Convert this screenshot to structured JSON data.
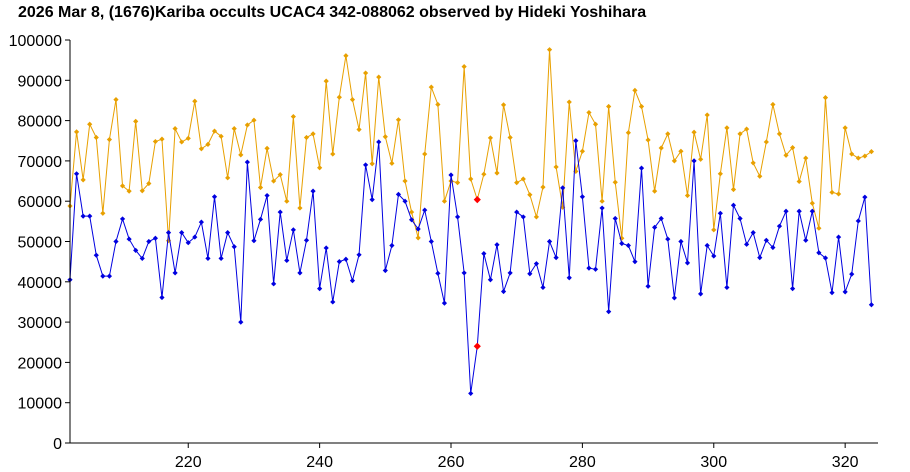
{
  "chart_data": {
    "type": "line",
    "title": "2026 Mar 8, (1676)Kariba occults UCAC4 342-088062 observed by Hideki Yoshihara",
    "xlabel": "",
    "ylabel": "",
    "xlim": [
      202,
      325
    ],
    "ylim": [
      0,
      100000
    ],
    "x_ticks": [
      220,
      240,
      260,
      280,
      300,
      320
    ],
    "y_ticks": [
      0,
      10000,
      20000,
      30000,
      40000,
      50000,
      60000,
      70000,
      80000,
      90000,
      100000
    ],
    "grid": false,
    "legend": "none",
    "colors": {
      "series_1": "#0000e0",
      "series_2": "#e8a000",
      "highlight": "#ff0000"
    },
    "highlight_x": [
      264
    ],
    "series": [
      {
        "values": [
          [
            202,
            40500
          ],
          [
            203,
            66800
          ],
          [
            204,
            56300
          ],
          [
            205,
            56300
          ],
          [
            206,
            46600
          ],
          [
            207,
            41400
          ],
          [
            208,
            41400
          ],
          [
            209,
            50000
          ],
          [
            210,
            55600
          ],
          [
            211,
            50600
          ],
          [
            212,
            47800
          ],
          [
            213,
            45800
          ],
          [
            214,
            50000
          ],
          [
            215,
            50800
          ],
          [
            216,
            36100
          ],
          [
            217,
            52200
          ],
          [
            218,
            42200
          ],
          [
            219,
            52200
          ],
          [
            220,
            49700
          ],
          [
            221,
            51100
          ],
          [
            222,
            54800
          ],
          [
            223,
            45800
          ],
          [
            224,
            61100
          ],
          [
            225,
            45800
          ],
          [
            226,
            52200
          ],
          [
            227,
            48700
          ],
          [
            228,
            30000
          ],
          [
            229,
            69700
          ],
          [
            230,
            50200
          ],
          [
            231,
            55500
          ],
          [
            232,
            61400
          ],
          [
            233,
            39500
          ],
          [
            234,
            57300
          ],
          [
            235,
            45300
          ],
          [
            236,
            52900
          ],
          [
            237,
            42200
          ],
          [
            238,
            50300
          ],
          [
            239,
            62500
          ],
          [
            240,
            38300
          ],
          [
            241,
            48400
          ],
          [
            242,
            35000
          ],
          [
            243,
            45000
          ],
          [
            244,
            45600
          ],
          [
            245,
            40300
          ],
          [
            246,
            46700
          ],
          [
            247,
            69000
          ],
          [
            248,
            60400
          ],
          [
            249,
            74700
          ],
          [
            250,
            42800
          ],
          [
            251,
            49000
          ],
          [
            252,
            61700
          ],
          [
            253,
            60000
          ],
          [
            254,
            55400
          ],
          [
            255,
            53100
          ],
          [
            256,
            57800
          ],
          [
            257,
            50000
          ],
          [
            258,
            42100
          ],
          [
            259,
            34700
          ],
          [
            260,
            66500
          ],
          [
            261,
            56100
          ],
          [
            262,
            42200
          ],
          [
            263,
            12300
          ],
          [
            264,
            24000
          ],
          [
            265,
            47000
          ],
          [
            266,
            40500
          ],
          [
            267,
            49200
          ],
          [
            268,
            37600
          ],
          [
            269,
            42200
          ],
          [
            270,
            57300
          ],
          [
            271,
            56100
          ],
          [
            272,
            42000
          ],
          [
            273,
            44500
          ],
          [
            274,
            38600
          ],
          [
            275,
            50000
          ],
          [
            276,
            46000
          ],
          [
            277,
            63300
          ],
          [
            278,
            41000
          ],
          [
            279,
            75000
          ],
          [
            280,
            61100
          ],
          [
            281,
            43400
          ],
          [
            282,
            43100
          ],
          [
            283,
            58300
          ],
          [
            284,
            32600
          ],
          [
            285,
            55700
          ],
          [
            286,
            49500
          ],
          [
            287,
            49000
          ],
          [
            288,
            45000
          ],
          [
            289,
            68200
          ],
          [
            290,
            38900
          ],
          [
            291,
            53500
          ],
          [
            292,
            55700
          ],
          [
            293,
            50600
          ],
          [
            294,
            36000
          ],
          [
            295,
            50000
          ],
          [
            296,
            44700
          ],
          [
            297,
            70000
          ],
          [
            298,
            37000
          ],
          [
            299,
            49000
          ],
          [
            300,
            46400
          ],
          [
            301,
            57000
          ],
          [
            302,
            38600
          ],
          [
            303,
            59000
          ],
          [
            304,
            55700
          ],
          [
            305,
            49300
          ],
          [
            306,
            52200
          ],
          [
            307,
            46000
          ],
          [
            308,
            50300
          ],
          [
            309,
            48500
          ],
          [
            310,
            53800
          ],
          [
            311,
            57500
          ],
          [
            312,
            38300
          ],
          [
            313,
            57500
          ],
          [
            314,
            50300
          ],
          [
            315,
            57500
          ],
          [
            316,
            47200
          ],
          [
            317,
            45900
          ],
          [
            318,
            37300
          ],
          [
            319,
            51100
          ],
          [
            320,
            37500
          ],
          [
            321,
            41900
          ],
          [
            322,
            55100
          ],
          [
            323,
            61000
          ],
          [
            324,
            34300
          ]
        ]
      },
      {
        "values": [
          [
            202,
            58800
          ],
          [
            203,
            77200
          ],
          [
            204,
            65300
          ],
          [
            205,
            79100
          ],
          [
            206,
            75800
          ],
          [
            207,
            57000
          ],
          [
            208,
            75300
          ],
          [
            209,
            85200
          ],
          [
            210,
            63800
          ],
          [
            211,
            62500
          ],
          [
            212,
            79800
          ],
          [
            213,
            62600
          ],
          [
            214,
            64400
          ],
          [
            215,
            74800
          ],
          [
            216,
            75400
          ],
          [
            217,
            50200
          ],
          [
            218,
            78000
          ],
          [
            219,
            74700
          ],
          [
            220,
            75600
          ],
          [
            221,
            84800
          ],
          [
            222,
            73000
          ],
          [
            223,
            74100
          ],
          [
            224,
            77400
          ],
          [
            225,
            76100
          ],
          [
            226,
            65800
          ],
          [
            227,
            78000
          ],
          [
            228,
            71500
          ],
          [
            229,
            78900
          ],
          [
            230,
            80100
          ],
          [
            231,
            63400
          ],
          [
            232,
            73100
          ],
          [
            233,
            65000
          ],
          [
            234,
            66600
          ],
          [
            235,
            60000
          ],
          [
            236,
            81000
          ],
          [
            237,
            58300
          ],
          [
            238,
            75800
          ],
          [
            239,
            76700
          ],
          [
            240,
            68300
          ],
          [
            241,
            89800
          ],
          [
            242,
            71700
          ],
          [
            243,
            85800
          ],
          [
            244,
            96100
          ],
          [
            245,
            85200
          ],
          [
            246,
            77800
          ],
          [
            247,
            91800
          ],
          [
            248,
            69300
          ],
          [
            249,
            90800
          ],
          [
            250,
            76000
          ],
          [
            251,
            69400
          ],
          [
            252,
            80200
          ],
          [
            253,
            65000
          ],
          [
            254,
            57300
          ],
          [
            255,
            50900
          ],
          [
            256,
            71700
          ],
          [
            257,
            88300
          ],
          [
            258,
            84000
          ],
          [
            259,
            60000
          ],
          [
            260,
            65000
          ],
          [
            261,
            64600
          ],
          [
            262,
            93400
          ],
          [
            263,
            65500
          ],
          [
            264,
            60400
          ],
          [
            265,
            66700
          ],
          [
            266,
            75700
          ],
          [
            267,
            67000
          ],
          [
            268,
            83900
          ],
          [
            269,
            75800
          ],
          [
            270,
            64600
          ],
          [
            271,
            65500
          ],
          [
            272,
            61600
          ],
          [
            273,
            56100
          ],
          [
            274,
            63500
          ],
          [
            275,
            97600
          ],
          [
            276,
            68500
          ],
          [
            277,
            58500
          ],
          [
            278,
            84600
          ],
          [
            279,
            67400
          ],
          [
            280,
            72400
          ],
          [
            281,
            82000
          ],
          [
            282,
            79100
          ],
          [
            283,
            60000
          ],
          [
            284,
            83500
          ],
          [
            285,
            64700
          ],
          [
            286,
            50800
          ],
          [
            287,
            77000
          ],
          [
            288,
            87500
          ],
          [
            289,
            83500
          ],
          [
            290,
            75200
          ],
          [
            291,
            62500
          ],
          [
            292,
            73200
          ],
          [
            293,
            76700
          ],
          [
            294,
            70000
          ],
          [
            295,
            72400
          ],
          [
            296,
            61400
          ],
          [
            297,
            77100
          ],
          [
            298,
            70400
          ],
          [
            299,
            81400
          ],
          [
            300,
            52900
          ],
          [
            301,
            66800
          ],
          [
            302,
            78200
          ],
          [
            303,
            62900
          ],
          [
            304,
            76700
          ],
          [
            305,
            77900
          ],
          [
            306,
            69500
          ],
          [
            307,
            66200
          ],
          [
            308,
            74700
          ],
          [
            309,
            84000
          ],
          [
            310,
            76700
          ],
          [
            311,
            71400
          ],
          [
            312,
            73300
          ],
          [
            313,
            64900
          ],
          [
            314,
            70700
          ],
          [
            315,
            59500
          ],
          [
            316,
            53300
          ],
          [
            317,
            85700
          ],
          [
            318,
            62200
          ],
          [
            319,
            61800
          ],
          [
            320,
            78200
          ],
          [
            321,
            71700
          ],
          [
            322,
            70700
          ],
          [
            323,
            71200
          ],
          [
            324,
            72300
          ]
        ]
      }
    ]
  }
}
